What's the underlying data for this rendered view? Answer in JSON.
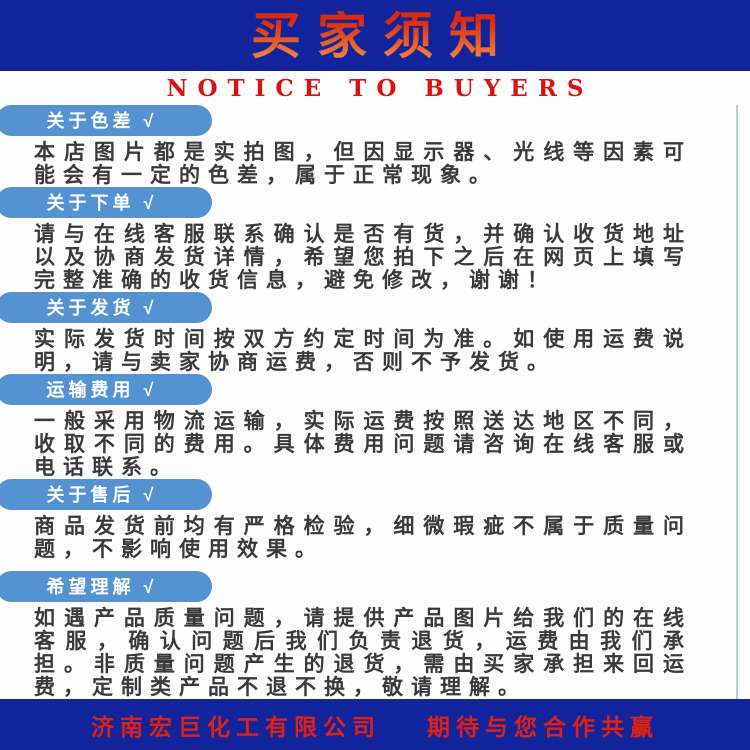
{
  "page": {
    "title": "买家须知",
    "subtitle": "NOTICE TO BUYERS"
  },
  "sections": [
    {
      "label": "关于色差 √",
      "text": "本店图片都是实拍图，但因显示器、光线等因素可能会有一定的色差，属于正常现象。"
    },
    {
      "label": "关于下单 √",
      "text": "请与在线客服联系确认是否有货，并确认收货地址以及协商发货详情，希望您拍下之后在网页上填写完整准确的收货信息，避免修改，谢谢！"
    },
    {
      "label": "关于发货 √",
      "text": "实际发货时间按双方约定时间为准。如使用运费说明，请与卖家协商运费，否则不予发货。"
    },
    {
      "label": "运输费用 √",
      "text": "一般采用物流运输，实际运费按照送达地区不同，收取不同的费用。具体费用问题请咨询在线客服或电话联系。"
    },
    {
      "label": "关于售后 √",
      "text": "商品发货前均有严格检验，细微瑕疵不属于质量问题，不影响使用效果。"
    },
    {
      "label": "希望理解 √",
      "text": "如遇产品质量问题，请提供产品图片给我们的在线客服，确认问题后我们负责退货，运费由我们承担。非质量问题产生的退货，需由买家承担来回运费，定制类产品不退不换，敬请理解。"
    }
  ],
  "footer": {
    "company": "济南宏巨化工有限公司",
    "slogan": "期待与您合作共赢"
  },
  "colors": {
    "banner_blue": "#12249b",
    "pill_blue": "#5492d2",
    "title_red": "#d92c0e",
    "title_orange": "#f5823c",
    "subtitle_red": "#dd1111",
    "body_text": "#3a3a3a",
    "footer_red": "#e02014",
    "edge_line": "#bcc8dc"
  }
}
